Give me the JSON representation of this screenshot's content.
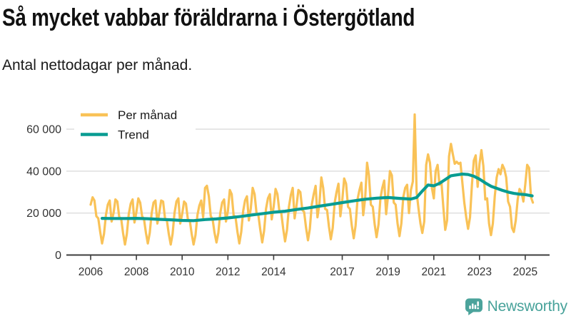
{
  "header": {
    "title": "Så mycket vabbar föräldrarna i Östergötland",
    "subtitle": "Antal nettodagar per månad."
  },
  "branding": {
    "logo_text": "Newsworthy",
    "logo_icon": "bar-chart-speech-bubble-icon",
    "logo_color": "#47a29a"
  },
  "colors": {
    "per_month": "#f9c257",
    "trend": "#089c92",
    "grid": "#dcdcdc",
    "axis": "#3d3d3d",
    "tick_label": "#333333",
    "legend_text": "#1a1a1a",
    "background": "#ffffff"
  },
  "chart_data": {
    "type": "line",
    "title": "Så mycket vabbar föräldrarna i Östergötland",
    "subtitle": "Antal nettodagar per månad.",
    "xlabel": "",
    "ylabel": "",
    "grid": "horizontal-only",
    "legend_position": "top-left",
    "xlim": [
      2005.9,
      2025.6
    ],
    "ylim": [
      0,
      70000
    ],
    "yticks": [
      0,
      20000,
      40000,
      60000
    ],
    "ytick_labels": [
      "0",
      "20 000",
      "40 000",
      "60 000"
    ],
    "xtick_years": [
      2006,
      2008,
      2010,
      2012,
      2014,
      2017,
      2019,
      2021,
      2023,
      2025
    ],
    "series": [
      {
        "name": "Per månad",
        "color": "#f9c257",
        "frequency": "monthly",
        "start_year": 2006,
        "start_month": 1,
        "end_year": 2025,
        "end_month": 5,
        "values": [
          24000,
          27500,
          26000,
          18500,
          17500,
          11000,
          5500,
          10000,
          19000,
          24000,
          26000,
          16000,
          20000,
          26500,
          25500,
          18000,
          17500,
          10500,
          5000,
          10000,
          19500,
          24500,
          26500,
          15500,
          20500,
          27000,
          25000,
          18500,
          17000,
          10500,
          5500,
          10500,
          20000,
          25000,
          26000,
          15000,
          20000,
          26000,
          25500,
          17500,
          16500,
          10000,
          5000,
          10000,
          20000,
          25500,
          27000,
          15000,
          19500,
          25500,
          24500,
          17000,
          16500,
          10000,
          5000,
          9500,
          19000,
          23500,
          26000,
          18000,
          32000,
          33000,
          28000,
          18500,
          17000,
          10500,
          6000,
          10500,
          20000,
          25000,
          26500,
          16000,
          21000,
          31000,
          29000,
          19000,
          18000,
          11000,
          5500,
          11000,
          21000,
          26000,
          28000,
          16500,
          22000,
          32000,
          29000,
          20000,
          19000,
          12000,
          6000,
          11500,
          22000,
          27000,
          29000,
          17000,
          23000,
          31500,
          29000,
          21000,
          20000,
          12500,
          6500,
          12000,
          23000,
          28500,
          32000,
          17500,
          23500,
          31000,
          30000,
          21500,
          20500,
          13000,
          7000,
          12500,
          24000,
          29000,
          33000,
          18000,
          24500,
          37000,
          32000,
          22000,
          21500,
          13500,
          7500,
          13000,
          25000,
          30000,
          34000,
          18500,
          26000,
          36500,
          34000,
          23000,
          22000,
          14000,
          8000,
          14000,
          26500,
          31000,
          34500,
          19000,
          27000,
          44000,
          38000,
          24000,
          23000,
          14500,
          8500,
          14500,
          27000,
          32000,
          35500,
          19500,
          28000,
          40000,
          38000,
          25000,
          24000,
          15000,
          9000,
          15000,
          27500,
          32000,
          33500,
          20000,
          31000,
          35000,
          67000,
          30000,
          22000,
          15000,
          10500,
          16000,
          43000,
          48000,
          44000,
          32000,
          27000,
          40000,
          43000,
          33500,
          35000,
          23000,
          12000,
          16500,
          47000,
          53000,
          48000,
          43500,
          44500,
          43500,
          44000,
          34500,
          25000,
          18000,
          12500,
          18000,
          33500,
          45000,
          47500,
          32500,
          43500,
          50000,
          42500,
          26500,
          27000,
          15000,
          9500,
          15000,
          28000,
          37000,
          41000,
          38500,
          43000,
          41000,
          37000,
          25500,
          23000,
          13000,
          11000,
          16500,
          26500,
          31500,
          30000,
          25500,
          33500,
          43000,
          41500,
          27500,
          25000
        ]
      },
      {
        "name": "Trend",
        "color": "#089c92",
        "points": [
          [
            2006.5,
            17500
          ],
          [
            2007,
            17400
          ],
          [
            2007.5,
            17400
          ],
          [
            2008,
            17500
          ],
          [
            2008.5,
            17300
          ],
          [
            2009,
            17000
          ],
          [
            2009.5,
            16800
          ],
          [
            2010,
            16500
          ],
          [
            2010.5,
            16400
          ],
          [
            2011,
            16900
          ],
          [
            2011.5,
            17200
          ],
          [
            2012,
            17700
          ],
          [
            2012.5,
            18300
          ],
          [
            2013,
            19000
          ],
          [
            2013.5,
            19700
          ],
          [
            2014,
            20400
          ],
          [
            2014.5,
            20900
          ],
          [
            2015,
            21700
          ],
          [
            2015.5,
            22400
          ],
          [
            2016,
            23300
          ],
          [
            2016.5,
            24100
          ],
          [
            2017,
            25000
          ],
          [
            2017.5,
            25800
          ],
          [
            2018,
            26600
          ],
          [
            2018.5,
            27100
          ],
          [
            2019,
            27400
          ],
          [
            2019.5,
            27000
          ],
          [
            2020,
            26700
          ],
          [
            2020.25,
            27400
          ],
          [
            2020.5,
            30500
          ],
          [
            2020.75,
            33400
          ],
          [
            2021,
            33000
          ],
          [
            2021.25,
            34200
          ],
          [
            2021.5,
            36000
          ],
          [
            2021.75,
            37800
          ],
          [
            2022,
            38200
          ],
          [
            2022.25,
            38600
          ],
          [
            2022.5,
            38400
          ],
          [
            2022.75,
            37600
          ],
          [
            2023,
            36200
          ],
          [
            2023.25,
            34400
          ],
          [
            2023.5,
            32800
          ],
          [
            2023.75,
            31800
          ],
          [
            2024,
            30800
          ],
          [
            2024.25,
            30000
          ],
          [
            2024.5,
            29400
          ],
          [
            2024.75,
            29000
          ],
          [
            2025,
            28800
          ],
          [
            2025.3,
            28200
          ]
        ]
      }
    ]
  }
}
